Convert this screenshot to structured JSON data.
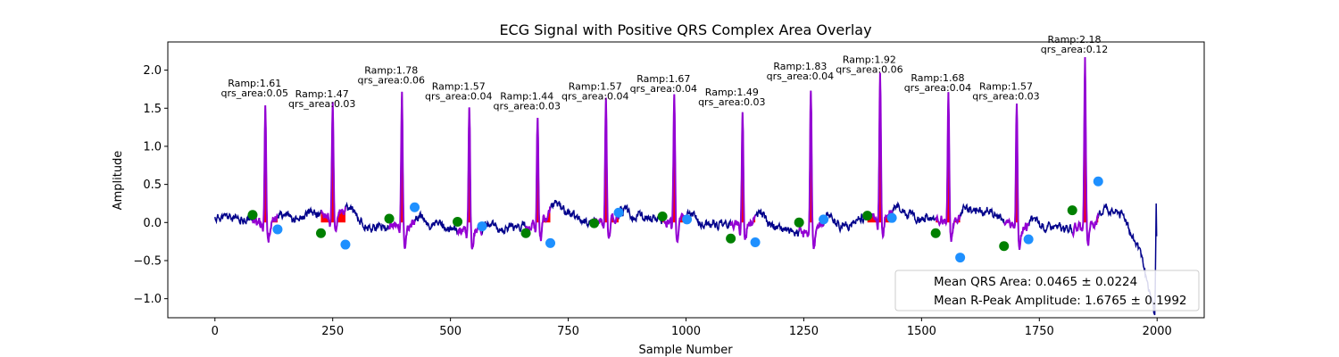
{
  "chart_data": {
    "type": "line",
    "title": "ECG Signal with Positive QRS Complex Area Overlay",
    "xlabel": "Sample Number",
    "ylabel": "Amplitude",
    "xlim": [
      -100,
      2100
    ],
    "ylim": [
      -1.25,
      2.37
    ],
    "xticks": [
      0,
      250,
      500,
      750,
      1000,
      1250,
      1500,
      1750,
      2000
    ],
    "yticks": [
      -1.0,
      -0.5,
      0.0,
      0.5,
      1.0,
      1.5,
      2.0
    ],
    "xtick_labels": [
      "0",
      "250",
      "500",
      "750",
      "1000",
      "1250",
      "1500",
      "1750",
      "2000"
    ],
    "ytick_labels": [
      "−1.0",
      "−0.5",
      "0.0",
      "0.5",
      "1.0",
      "1.5",
      "2.0"
    ],
    "grid": false,
    "colors": {
      "signal": "#00008b",
      "qrs_segment": "#9400d3",
      "area_fill": "#ff0000",
      "onset_marker": "#008000",
      "offset_marker": "#1e90ff"
    },
    "beats": [
      {
        "onset": 80,
        "onset_y": 0.1,
        "r_x": 107,
        "r_amp": 1.61,
        "offset": 133,
        "offset_y": -0.09,
        "qrs_area": 0.05,
        "label_line1": "Ramp:1.61",
        "label_line2": "qrs_area:0.05"
      },
      {
        "onset": 225,
        "onset_y": -0.14,
        "r_x": 250,
        "r_amp": 1.47,
        "offset": 277,
        "offset_y": -0.29,
        "qrs_area": 0.03,
        "label_line1": "Ramp:1.47",
        "label_line2": "qrs_area:0.03"
      },
      {
        "onset": 370,
        "onset_y": 0.05,
        "r_x": 397,
        "r_amp": 1.78,
        "offset": 424,
        "offset_y": 0.2,
        "qrs_area": 0.06,
        "label_line1": "Ramp:1.78",
        "label_line2": "qrs_area:0.06"
      },
      {
        "onset": 515,
        "onset_y": 0.01,
        "r_x": 540,
        "r_amp": 1.57,
        "offset": 567,
        "offset_y": -0.05,
        "qrs_area": 0.04,
        "label_line1": "Ramp:1.57",
        "label_line2": "qrs_area:0.04"
      },
      {
        "onset": 660,
        "onset_y": -0.14,
        "r_x": 685,
        "r_amp": 1.44,
        "offset": 712,
        "offset_y": -0.27,
        "qrs_area": 0.03,
        "label_line1": "Ramp:1.44",
        "label_line2": "qrs_area:0.03"
      },
      {
        "onset": 805,
        "onset_y": -0.01,
        "r_x": 830,
        "r_amp": 1.57,
        "offset": 857,
        "offset_y": 0.13,
        "qrs_area": 0.04,
        "label_line1": "Ramp:1.57",
        "label_line2": "qrs_area:0.04"
      },
      {
        "onset": 950,
        "onset_y": 0.08,
        "r_x": 975,
        "r_amp": 1.67,
        "offset": 1002,
        "offset_y": 0.04,
        "qrs_area": 0.04,
        "label_line1": "Ramp:1.67",
        "label_line2": "qrs_area:0.04"
      },
      {
        "onset": 1095,
        "onset_y": -0.21,
        "r_x": 1120,
        "r_amp": 1.49,
        "offset": 1147,
        "offset_y": -0.26,
        "qrs_area": 0.03,
        "label_line1": "Ramp:1.49",
        "label_line2": "qrs_area:0.03"
      },
      {
        "onset": 1240,
        "onset_y": 0.0,
        "r_x": 1265,
        "r_amp": 1.83,
        "offset": 1292,
        "offset_y": 0.04,
        "qrs_area": 0.04,
        "label_line1": "Ramp:1.83",
        "label_line2": "qrs_area:0.04"
      },
      {
        "onset": 1385,
        "onset_y": 0.09,
        "r_x": 1412,
        "r_amp": 1.92,
        "offset": 1437,
        "offset_y": 0.06,
        "qrs_area": 0.06,
        "label_line1": "Ramp:1.92",
        "label_line2": "qrs_area:0.06"
      },
      {
        "onset": 1530,
        "onset_y": -0.14,
        "r_x": 1557,
        "r_amp": 1.68,
        "offset": 1582,
        "offset_y": -0.46,
        "qrs_area": 0.04,
        "label_line1": "Ramp:1.68",
        "label_line2": "qrs_area:0.04"
      },
      {
        "onset": 1675,
        "onset_y": -0.31,
        "r_x": 1702,
        "r_amp": 1.57,
        "offset": 1727,
        "offset_y": -0.22,
        "qrs_area": 0.03,
        "label_line1": "Ramp:1.57",
        "label_line2": "qrs_area:0.03"
      },
      {
        "onset": 1820,
        "onset_y": 0.16,
        "r_x": 1847,
        "r_amp": 2.18,
        "offset": 1875,
        "offset_y": 0.54,
        "qrs_area": 0.12,
        "label_line1": "Ramp:2.18",
        "label_line2": "qrs_area:0.12"
      }
    ],
    "legend": {
      "location": "lower right",
      "entries": [
        "Mean QRS Area: 0.0465 ± 0.0224",
        "Mean R-Peak Amplitude: 1.6765 ± 0.1992"
      ]
    }
  }
}
